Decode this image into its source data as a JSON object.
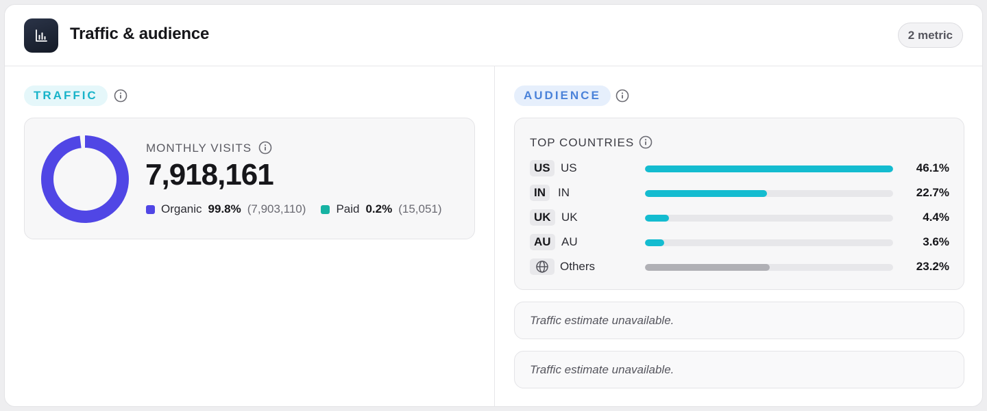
{
  "header": {
    "title": "Traffic & audience",
    "icon": "bar-chart-icon",
    "metric_badge": "2 metric"
  },
  "traffic": {
    "section_label": "TRAFFIC",
    "monthly_visits_label": "MONTHLY VISITS",
    "monthly_visits_value": "7,918,161",
    "organic": {
      "label": "Organic",
      "percent": "99.8%",
      "count": "(7,903,110)",
      "color": "#5046e5",
      "fraction": 0.998
    },
    "paid": {
      "label": "Paid",
      "percent": "0.2%",
      "count": "(15,051)",
      "color": "#17b3a3",
      "fraction": 0.002
    }
  },
  "audience": {
    "section_label": "AUDIENCE",
    "top_countries_label": "TOP COUNTRIES",
    "countries": [
      {
        "code": "US",
        "name": "US",
        "percent": "46.1%",
        "value": 46.1,
        "color": "#14bcd0"
      },
      {
        "code": "IN",
        "name": "IN",
        "percent": "22.7%",
        "value": 22.7,
        "color": "#14bcd0"
      },
      {
        "code": "UK",
        "name": "UK",
        "percent": "4.4%",
        "value": 4.4,
        "color": "#14bcd0"
      },
      {
        "code": "AU",
        "name": "AU",
        "percent": "3.6%",
        "value": 3.6,
        "color": "#14bcd0"
      },
      {
        "code": "",
        "name": "Others",
        "percent": "23.2%",
        "value": 23.2,
        "color": "#b0b0b5",
        "icon": "globe-icon"
      }
    ],
    "notes": [
      "Traffic estimate unavailable.",
      "Traffic estimate unavailable."
    ]
  }
}
